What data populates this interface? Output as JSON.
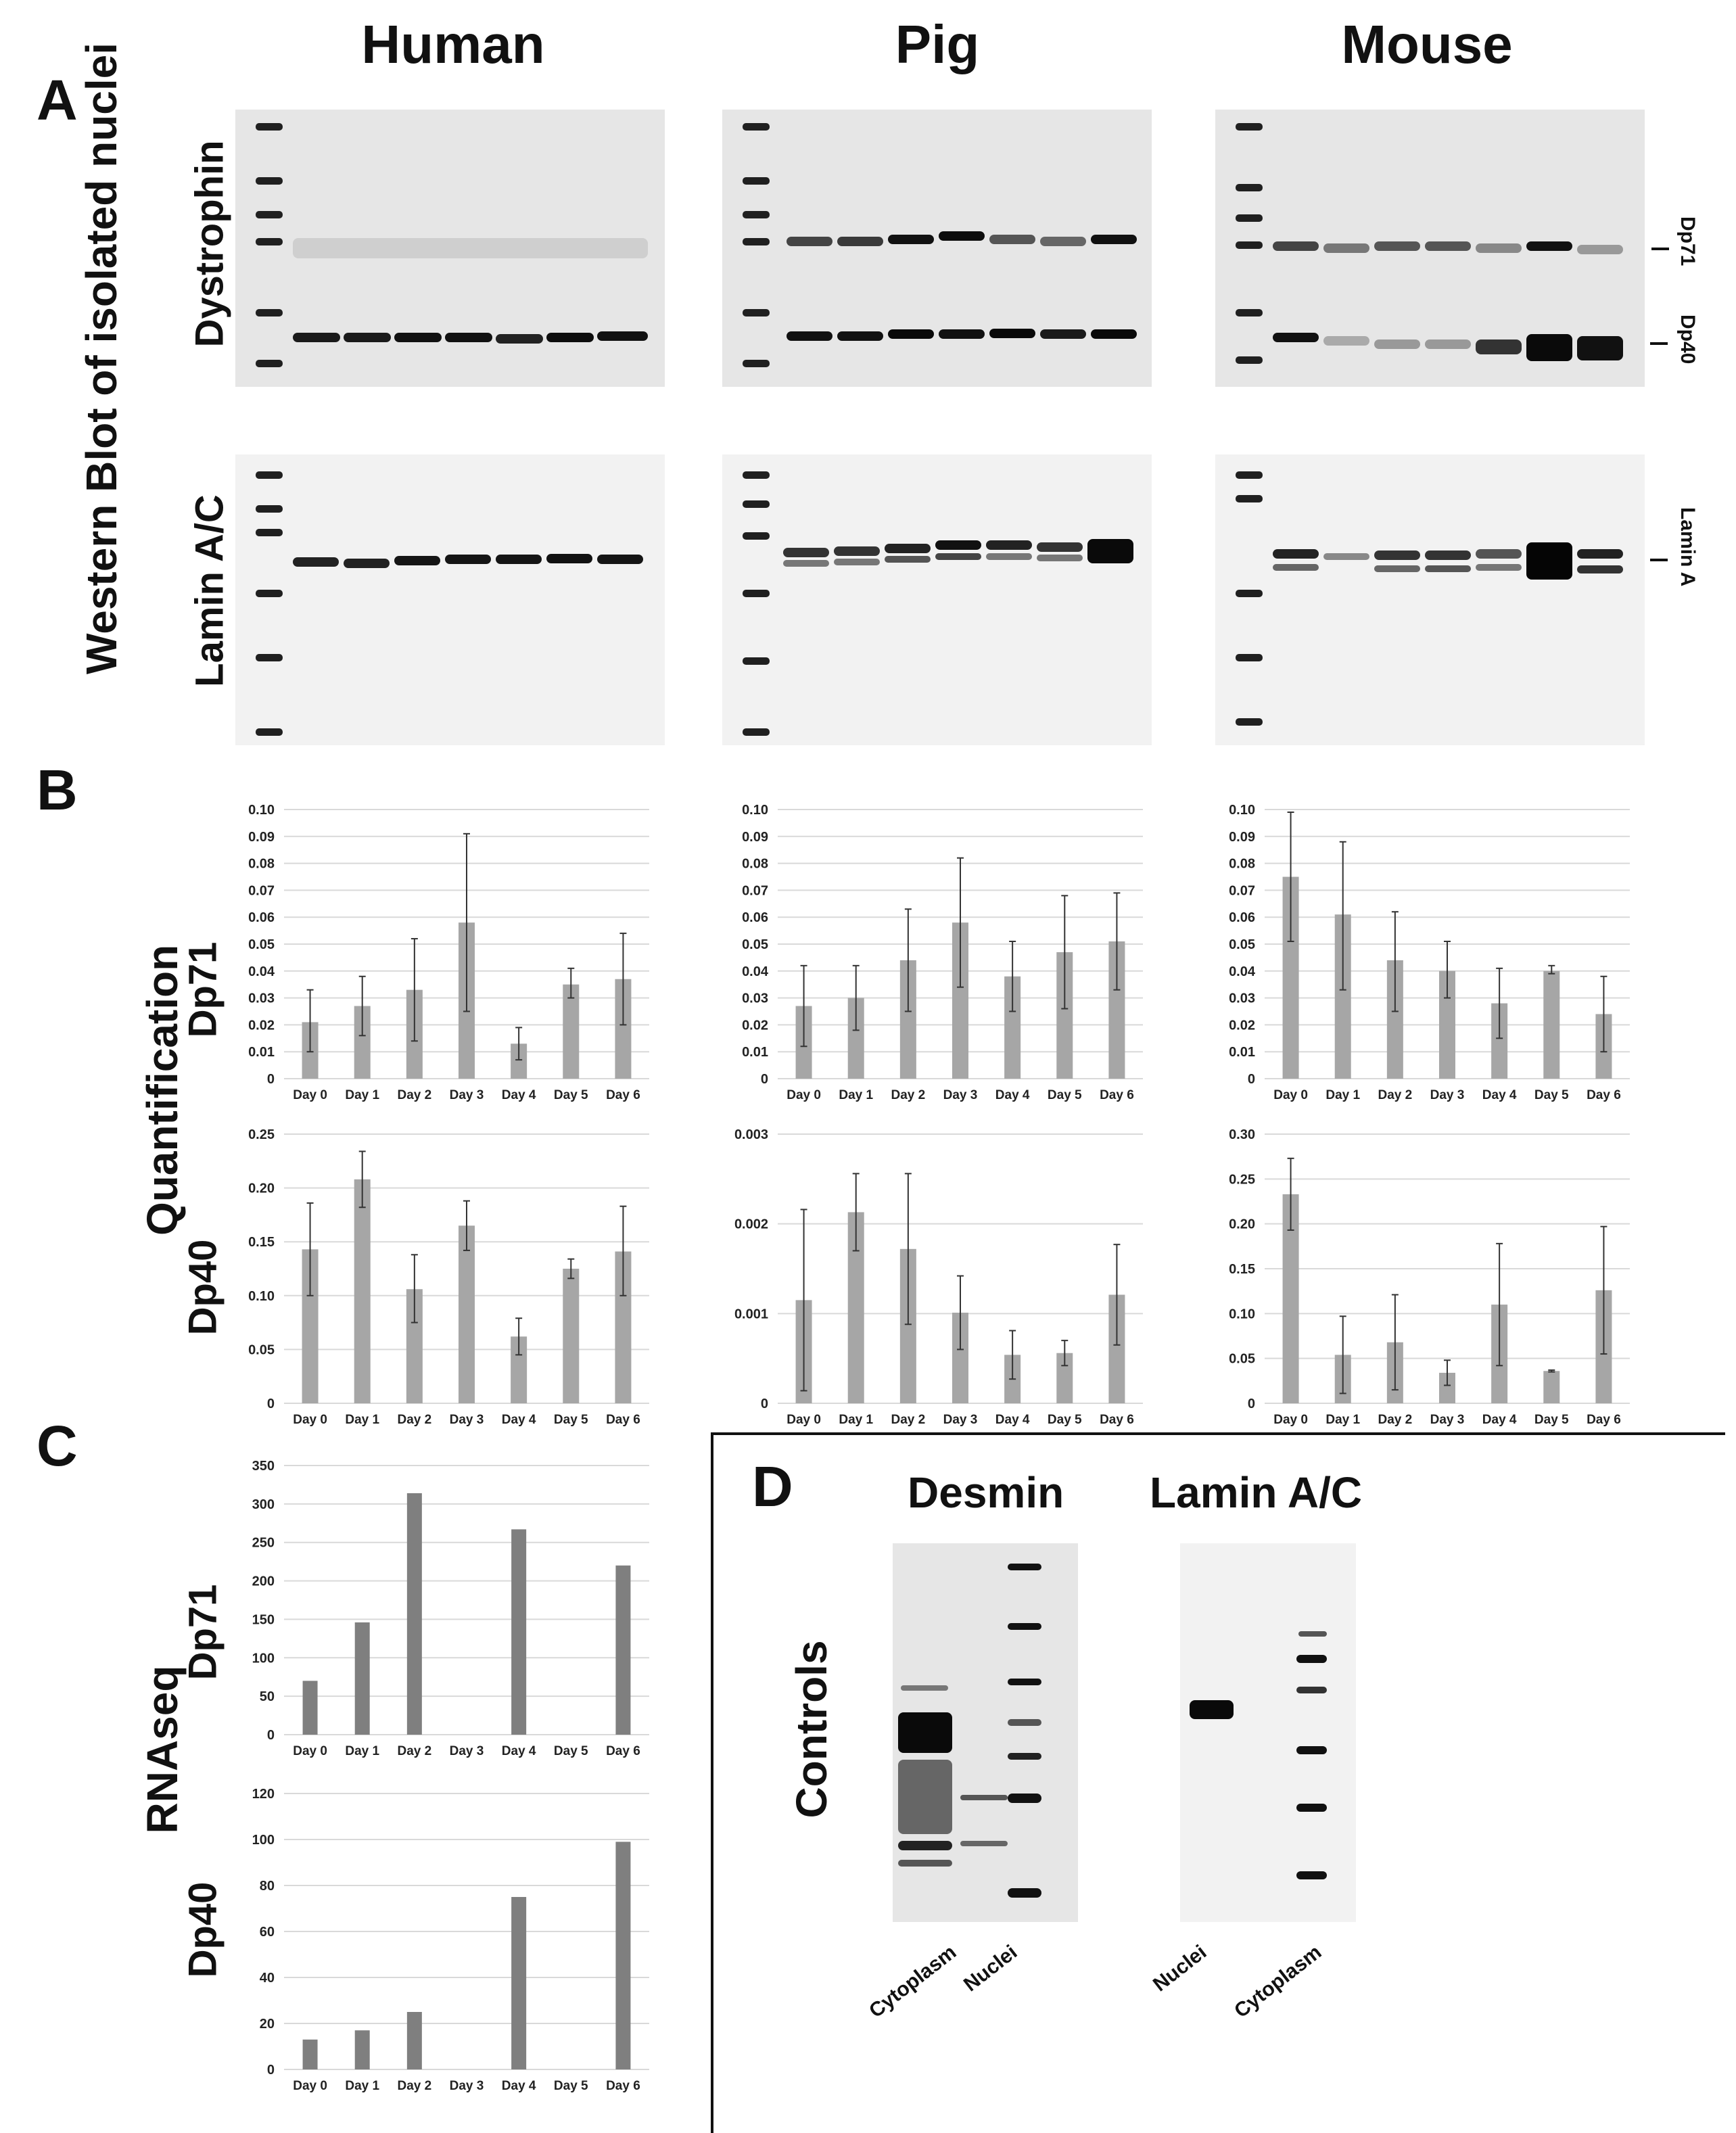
{
  "panels": {
    "A": "A",
    "B": "B",
    "C": "C",
    "D": "D"
  },
  "species": [
    "Human",
    "Pig",
    "Mouse"
  ],
  "labels": {
    "western_blot": "Western Blot of isolated nuclei",
    "dystrophin": "Dystrophin",
    "lamin_ac": "Lamin A/C",
    "quantification": "Quantification",
    "rnaseq": "RNAseq",
    "dp71": "Dp71",
    "dp40": "Dp40",
    "controls": "Controls",
    "arrow_dp71": "Dp71",
    "arrow_dp40": "Dp40",
    "arrow_lamin": "Lamin A",
    "desmin": "Desmin",
    "lamin_ctrl": "Lamin A/C",
    "desmin_lanes": [
      "Cytoplasm",
      "Nuclei"
    ],
    "lamin_lanes": [
      "Nuclei",
      "Cytoplasm"
    ]
  },
  "colors": {
    "bar_quant": "#a6a6a6",
    "bar_rnaseq": "#7f7f7f",
    "grid": "#d9d9d9"
  },
  "chart_data": [
    {
      "id": "B-human-dp71",
      "type": "bar",
      "categories": [
        "Day 0",
        "Day 1",
        "Day 2",
        "Day 3",
        "Day 4",
        "Day 5",
        "Day 6"
      ],
      "values": [
        0.021,
        0.027,
        0.033,
        0.058,
        0.013,
        0.035,
        0.037
      ],
      "err_hi": [
        0.033,
        0.038,
        0.052,
        0.091,
        0.019,
        0.041,
        0.054
      ],
      "err_lo": [
        0.01,
        0.016,
        0.014,
        0.025,
        0.007,
        0.03,
        0.02
      ],
      "ylim": [
        0,
        0.1
      ],
      "yticks": [
        "0",
        "0.01",
        "0.02",
        "0.03",
        "0.04",
        "0.05",
        "0.06",
        "0.07",
        "0.08",
        "0.09",
        "0.10"
      ]
    },
    {
      "id": "B-pig-dp71",
      "type": "bar",
      "categories": [
        "Day 0",
        "Day 1",
        "Day 2",
        "Day 3",
        "Day 4",
        "Day 5",
        "Day 6"
      ],
      "values": [
        0.027,
        0.03,
        0.044,
        0.058,
        0.038,
        0.047,
        0.051
      ],
      "err_hi": [
        0.042,
        0.042,
        0.063,
        0.082,
        0.051,
        0.068,
        0.069
      ],
      "err_lo": [
        0.012,
        0.018,
        0.025,
        0.034,
        0.025,
        0.026,
        0.033
      ],
      "ylim": [
        0,
        0.1
      ],
      "yticks": [
        "0",
        "0.01",
        "0.02",
        "0.03",
        "0.04",
        "0.05",
        "0.06",
        "0.07",
        "0.08",
        "0.09",
        "0.10"
      ]
    },
    {
      "id": "B-mouse-dp71",
      "type": "bar",
      "categories": [
        "Day 0",
        "Day 1",
        "Day 2",
        "Day 3",
        "Day 4",
        "Day 5",
        "Day 6"
      ],
      "values": [
        0.075,
        0.061,
        0.044,
        0.04,
        0.028,
        0.04,
        0.024
      ],
      "err_hi": [
        0.099,
        0.088,
        0.062,
        0.051,
        0.041,
        0.042,
        0.038
      ],
      "err_lo": [
        0.051,
        0.033,
        0.025,
        0.03,
        0.015,
        0.039,
        0.01
      ],
      "ylim": [
        0,
        0.1
      ],
      "yticks": [
        "0",
        "0.01",
        "0.02",
        "0.03",
        "0.04",
        "0.05",
        "0.06",
        "0.07",
        "0.08",
        "0.09",
        "0.10"
      ]
    },
    {
      "id": "B-human-dp40",
      "type": "bar",
      "categories": [
        "Day 0",
        "Day 1",
        "Day 2",
        "Day 3",
        "Day 4",
        "Day 5",
        "Day 6"
      ],
      "values": [
        0.143,
        0.208,
        0.106,
        0.165,
        0.062,
        0.125,
        0.141
      ],
      "err_hi": [
        0.186,
        0.234,
        0.138,
        0.188,
        0.079,
        0.134,
        0.183
      ],
      "err_lo": [
        0.1,
        0.182,
        0.075,
        0.142,
        0.045,
        0.116,
        0.1
      ],
      "ylim": [
        0,
        0.25
      ],
      "yticks": [
        "0",
        "0.05",
        "0.10",
        "0.15",
        "0.20",
        "0.25"
      ]
    },
    {
      "id": "B-pig-dp40",
      "type": "bar",
      "categories": [
        "Day 0",
        "Day 1",
        "Day 2",
        "Day 3",
        "Day 4",
        "Day 5",
        "Day 6"
      ],
      "values": [
        0.00115,
        0.00213,
        0.00172,
        0.00101,
        0.00054,
        0.00056,
        0.00121
      ],
      "err_hi": [
        0.00216,
        0.00256,
        0.00256,
        0.00142,
        0.00081,
        0.0007,
        0.00177
      ],
      "err_lo": [
        0.00014,
        0.0017,
        0.00088,
        0.0006,
        0.00027,
        0.00042,
        0.00065
      ],
      "ylim": [
        0,
        0.003
      ],
      "yticks": [
        "0",
        "0.001",
        "0.002",
        "0.003"
      ]
    },
    {
      "id": "B-mouse-dp40",
      "type": "bar",
      "categories": [
        "Day 0",
        "Day 1",
        "Day 2",
        "Day 3",
        "Day 4",
        "Day 5",
        "Day 6"
      ],
      "values": [
        0.233,
        0.054,
        0.068,
        0.034,
        0.11,
        0.036,
        0.126
      ],
      "err_hi": [
        0.273,
        0.097,
        0.121,
        0.048,
        0.178,
        0.037,
        0.197
      ],
      "err_lo": [
        0.193,
        0.011,
        0.015,
        0.02,
        0.042,
        0.035,
        0.055
      ],
      "ylim": [
        0,
        0.3
      ],
      "yticks": [
        "0",
        "0.05",
        "0.10",
        "0.15",
        "0.20",
        "0.25",
        "0.30"
      ]
    },
    {
      "id": "C-dp71",
      "type": "bar",
      "categories": [
        "Day 0",
        "Day 1",
        "Day 2",
        "Day 3",
        "Day 4",
        "Day 5",
        "Day 6"
      ],
      "values": [
        70,
        146,
        314,
        0,
        267,
        0,
        220
      ],
      "ylim": [
        0,
        350
      ],
      "yticks": [
        "0",
        "50",
        "100",
        "150",
        "200",
        "250",
        "300",
        "350"
      ]
    },
    {
      "id": "C-dp40",
      "type": "bar",
      "categories": [
        "Day 0",
        "Day 1",
        "Day 2",
        "Day 3",
        "Day 4",
        "Day 5",
        "Day 6"
      ],
      "values": [
        13,
        17,
        25,
        0,
        75,
        0,
        99
      ],
      "ylim": [
        0,
        120
      ],
      "yticks": [
        "0",
        "20",
        "40",
        "60",
        "80",
        "100",
        "120"
      ]
    }
  ]
}
